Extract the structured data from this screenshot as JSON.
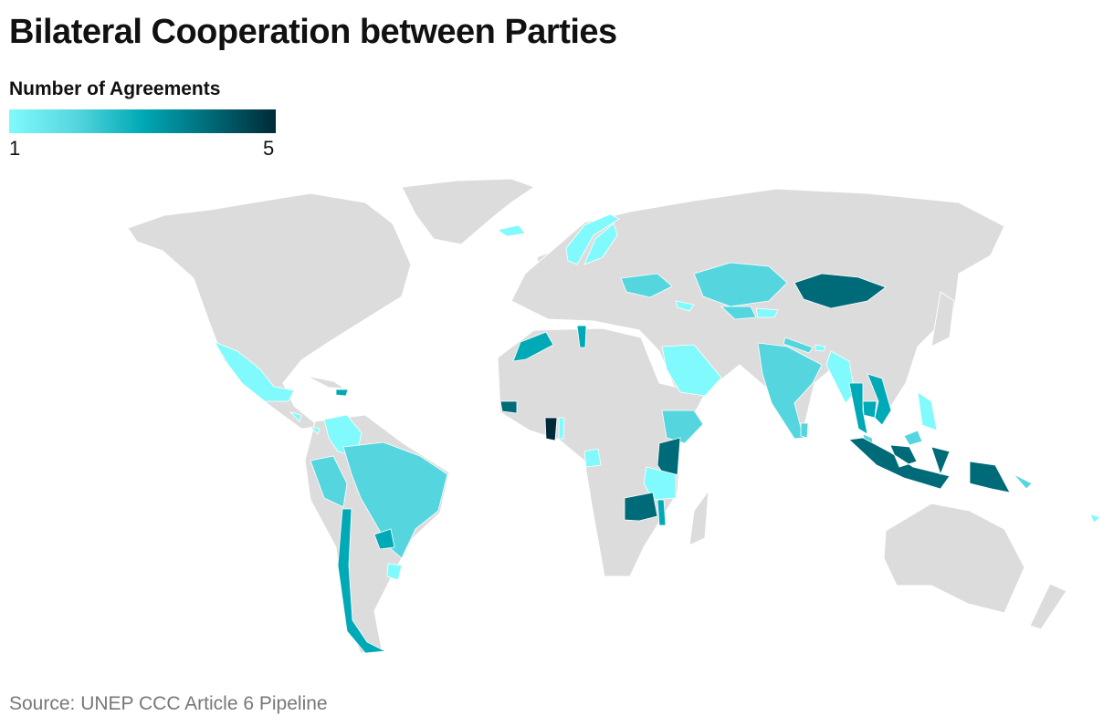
{
  "title": "Bilateral Cooperation between Parties",
  "legend": {
    "title": "Number of Agreements",
    "min_label": "1",
    "max_label": "5",
    "min": 1,
    "max": 5,
    "colors": [
      "#80fafc",
      "#55d6de",
      "#00a9b6",
      "#006b78",
      "#002a38"
    ]
  },
  "source": "Source: UNEP CCC Article 6 Pipeline",
  "land_color": "#dcdcdc",
  "countries": [
    {
      "name": "Iceland",
      "value": 1
    },
    {
      "name": "Norway",
      "value": 1
    },
    {
      "name": "Sweden",
      "value": 1
    },
    {
      "name": "Ukraine",
      "value": 2
    },
    {
      "name": "Georgia",
      "value": 1
    },
    {
      "name": "Kazakhstan",
      "value": 2
    },
    {
      "name": "Uzbekistan",
      "value": 2
    },
    {
      "name": "Kyrgyzstan",
      "value": 1
    },
    {
      "name": "Mongolia",
      "value": 4
    },
    {
      "name": "Morocco",
      "value": 3
    },
    {
      "name": "Tunisia",
      "value": 3
    },
    {
      "name": "Saudi Arabia",
      "value": 1
    },
    {
      "name": "Mexico",
      "value": 1
    },
    {
      "name": "Guatemala",
      "value": 1
    },
    {
      "name": "Costa Rica",
      "value": 1
    },
    {
      "name": "Dominican Republic",
      "value": 3
    },
    {
      "name": "Colombia",
      "value": 1
    },
    {
      "name": "Peru",
      "value": 2
    },
    {
      "name": "Brazil",
      "value": 2
    },
    {
      "name": "Paraguay",
      "value": 3
    },
    {
      "name": "Uruguay",
      "value": 1
    },
    {
      "name": "Chile",
      "value": 3
    },
    {
      "name": "Senegal",
      "value": 4
    },
    {
      "name": "Ghana",
      "value": 5
    },
    {
      "name": "Togo",
      "value": 1
    },
    {
      "name": "Gabon",
      "value": 1
    },
    {
      "name": "Ethiopia",
      "value": 2
    },
    {
      "name": "Kenya",
      "value": 4
    },
    {
      "name": "Tanzania",
      "value": 1
    },
    {
      "name": "Zambia",
      "value": 4
    },
    {
      "name": "Malawi",
      "value": 3
    },
    {
      "name": "India",
      "value": 2
    },
    {
      "name": "Nepal",
      "value": 2
    },
    {
      "name": "Sri Lanka",
      "value": 2
    },
    {
      "name": "Bhutan",
      "value": 1
    },
    {
      "name": "Myanmar",
      "value": 1
    },
    {
      "name": "Thailand",
      "value": 3
    },
    {
      "name": "Vietnam",
      "value": 3
    },
    {
      "name": "Cambodia",
      "value": 3
    },
    {
      "name": "Philippines",
      "value": 1
    },
    {
      "name": "Malaysia",
      "value": 2
    },
    {
      "name": "Indonesia",
      "value": 4
    },
    {
      "name": "Papua New Guinea",
      "value": 4
    },
    {
      "name": "Solomon Islands",
      "value": 2
    },
    {
      "name": "Vanuatu",
      "value": 1
    }
  ]
}
